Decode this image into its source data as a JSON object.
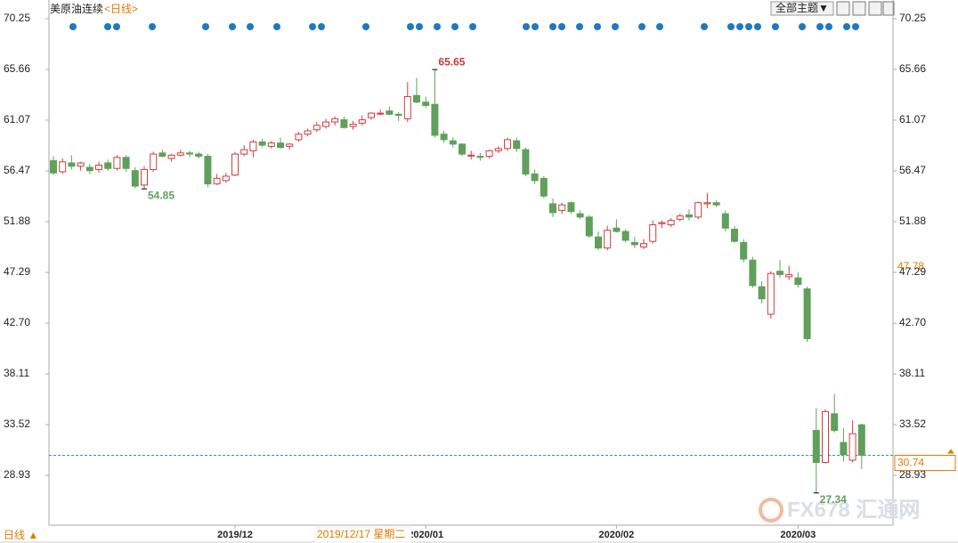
{
  "chart_data": {
    "type": "candlestick",
    "title": "美原油连续",
    "subtitle": "<日线>",
    "categories": [
      null,
      null,
      null,
      null,
      null,
      null,
      null,
      null,
      null,
      null,
      null,
      null,
      null,
      null,
      null,
      null,
      null,
      null,
      null,
      null,
      "2019/12",
      null,
      null,
      null,
      null,
      null,
      null,
      null,
      null,
      null,
      null,
      null,
      null,
      null,
      null,
      null,
      null,
      null,
      null,
      null,
      null,
      "2020/01",
      null,
      null,
      null,
      null,
      null,
      null,
      null,
      null,
      null,
      null,
      null,
      null,
      null,
      null,
      null,
      null,
      null,
      null,
      null,
      null,
      "2020/02",
      null,
      null,
      null,
      null,
      null,
      null,
      null,
      null,
      null,
      null,
      null,
      null,
      null,
      null,
      null,
      null,
      null,
      null,
      null,
      "2020/03",
      null,
      null,
      null,
      null,
      null,
      null,
      null
    ],
    "open": [
      57.4,
      56.4,
      57.2,
      56.9,
      56.8,
      56.6,
      57.2,
      56.7,
      57.7,
      56.5,
      55.2,
      56.6,
      58.1,
      57.6,
      57.9,
      58.1,
      58.0,
      57.8,
      55.3,
      55.6,
      56.1,
      58.0,
      58.3,
      59.1,
      58.7,
      59.0,
      58.7,
      59.3,
      59.8,
      60.2,
      60.5,
      60.9,
      61.1,
      60.5,
      60.8,
      61.3,
      61.7,
      61.9,
      61.6,
      61.2,
      63.3,
      62.7,
      62.5,
      59.8,
      59.2,
      58.9,
      57.9,
      57.8,
      57.8,
      58.3,
      58.5,
      59.2,
      58.4,
      56.2,
      55.8,
      53.5,
      52.9,
      53.6,
      52.6,
      52.3,
      50.5,
      49.5,
      51.3,
      51.0,
      50.0,
      49.6,
      50.1,
      51.7,
      51.6,
      52.1,
      52.5,
      52.3,
      53.5,
      53.6,
      52.6,
      51.2,
      50.0,
      48.4,
      46.0,
      43.5,
      47.4,
      46.9,
      46.8,
      45.8,
      33.0,
      30.1,
      34.5,
      31.9,
      30.3,
      33.5
    ],
    "high": [
      57.8,
      57.6,
      57.9,
      57.3,
      57.1,
      57.3,
      57.5,
      57.9,
      57.9,
      56.8,
      56.9,
      58.2,
      58.4,
      58.0,
      58.4,
      58.3,
      58.2,
      58.0,
      56.2,
      56.3,
      58.2,
      58.8,
      59.3,
      59.4,
      59.2,
      59.5,
      59.0,
      60.0,
      60.3,
      60.9,
      61.2,
      61.4,
      61.4,
      61.0,
      61.5,
      61.8,
      62.0,
      62.3,
      61.8,
      64.5,
      64.9,
      63.2,
      65.65,
      60.1,
      59.5,
      59.0,
      58.3,
      58.1,
      58.4,
      58.7,
      59.5,
      59.5,
      58.6,
      56.6,
      56.0,
      54.0,
      53.6,
      53.7,
      52.9,
      52.5,
      51.0,
      51.5,
      52.1,
      51.2,
      50.5,
      50.3,
      52.0,
      52.0,
      52.2,
      52.6,
      53.0,
      53.7,
      54.5,
      53.8,
      52.9,
      51.5,
      50.3,
      48.7,
      46.5,
      47.4,
      48.4,
      47.9,
      47.3,
      46.0,
      35.0,
      34.9,
      36.3,
      33.2,
      33.9,
      33.6
    ],
    "low": [
      56.1,
      56.2,
      56.6,
      56.5,
      56.2,
      56.3,
      56.5,
      56.5,
      56.4,
      54.9,
      54.85,
      56.4,
      57.7,
      57.3,
      57.8,
      57.7,
      57.6,
      55.0,
      55.2,
      55.4,
      56.0,
      57.8,
      57.7,
      58.6,
      58.5,
      58.5,
      58.4,
      59.1,
      59.6,
      60.0,
      60.3,
      60.6,
      60.3,
      60.2,
      60.6,
      61.1,
      61.5,
      61.5,
      61.0,
      60.9,
      62.6,
      62.2,
      59.5,
      59.0,
      58.6,
      57.8,
      57.5,
      57.4,
      57.6,
      58.1,
      58.3,
      58.2,
      56.0,
      55.3,
      54.0,
      52.3,
      52.6,
      52.6,
      52.1,
      50.4,
      49.3,
      49.3,
      50.9,
      50.0,
      49.5,
      49.4,
      49.9,
      51.3,
      51.4,
      51.9,
      52.0,
      52.1,
      53.1,
      53.2,
      51.0,
      50.0,
      48.2,
      45.9,
      44.5,
      43.1,
      46.8,
      46.6,
      45.9,
      41.0,
      27.34,
      30.0,
      32.8,
      30.2,
      30.1,
      29.5
    ],
    "close": [
      56.3,
      57.3,
      56.9,
      57.2,
      56.5,
      57.0,
      56.7,
      57.7,
      56.7,
      55.1,
      56.6,
      58.0,
      57.8,
      57.9,
      58.1,
      58.0,
      57.8,
      55.3,
      55.8,
      56.0,
      58.0,
      58.4,
      59.1,
      58.8,
      59.0,
      58.6,
      58.9,
      59.8,
      60.1,
      60.6,
      60.9,
      61.2,
      60.4,
      60.7,
      61.1,
      61.7,
      61.7,
      61.6,
      61.5,
      63.2,
      62.7,
      62.4,
      59.7,
      59.3,
      58.9,
      58.0,
      57.9,
      57.7,
      58.3,
      58.5,
      59.3,
      58.5,
      56.2,
      55.6,
      54.2,
      52.7,
      53.4,
      52.8,
      52.3,
      50.6,
      49.5,
      51.1,
      51.0,
      50.2,
      49.8,
      49.9,
      51.6,
      51.8,
      52.0,
      52.4,
      52.3,
      53.6,
      53.6,
      53.4,
      51.3,
      50.1,
      48.5,
      46.1,
      44.9,
      47.2,
      47.1,
      47.1,
      46.2,
      41.3,
      30.1,
      34.7,
      33.0,
      30.8,
      32.7,
      30.74
    ],
    "up_color": "#d23c3c",
    "down_color": "#5fa05a",
    "ylim": [
      24.42,
      71.94
    ],
    "yticks": [
      70.25,
      65.66,
      61.07,
      56.47,
      51.88,
      47.29,
      {
        "value": 42.7,
        "label": "42.70"
      },
      38.11,
      33.52,
      28.93
    ],
    "cursor": {
      "date_label": "2019/12/17 星期二",
      "price": 47.78
    },
    "toolbar": "全部主题▼",
    "period_button": "日线 ▲",
    "watermark": "FX678 汇通网"
  }
}
